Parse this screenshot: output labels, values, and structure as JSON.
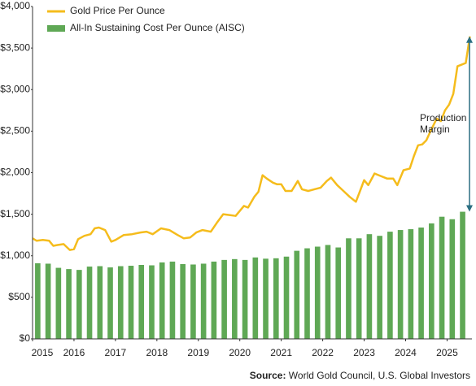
{
  "chart_data": {
    "type": "bar_line",
    "series": [
      {
        "name": "Gold Price Per Ounce",
        "kind": "line",
        "color": "#f5bc1c",
        "x": [
          2015.0,
          2015.1,
          2015.25,
          2015.4,
          2015.5,
          2015.6,
          2015.75,
          2015.9,
          2016.0,
          2016.1,
          2016.25,
          2016.4,
          2016.5,
          2016.6,
          2016.75,
          2016.9,
          2017.0,
          2017.2,
          2017.4,
          2017.6,
          2017.75,
          2017.9,
          2018.1,
          2018.3,
          2018.5,
          2018.65,
          2018.8,
          2018.95,
          2019.1,
          2019.3,
          2019.45,
          2019.6,
          2019.75,
          2019.9,
          2020.1,
          2020.2,
          2020.35,
          2020.45,
          2020.55,
          2020.65,
          2020.8,
          2020.9,
          2021.0,
          2021.1,
          2021.25,
          2021.4,
          2021.5,
          2021.65,
          2021.8,
          2021.95,
          2022.1,
          2022.2,
          2022.35,
          2022.5,
          2022.65,
          2022.8,
          2022.9,
          2023.0,
          2023.1,
          2023.25,
          2023.4,
          2023.55,
          2023.7,
          2023.8,
          2023.95,
          2024.1,
          2024.2,
          2024.3,
          2024.4,
          2024.5,
          2024.6,
          2024.75,
          2024.85,
          2024.95,
          2025.05,
          2025.15,
          2025.25,
          2025.35,
          2025.45,
          2025.55
        ],
        "values": [
          1210,
          1180,
          1190,
          1180,
          1120,
          1130,
          1140,
          1070,
          1080,
          1200,
          1240,
          1260,
          1330,
          1340,
          1310,
          1170,
          1190,
          1250,
          1260,
          1280,
          1290,
          1260,
          1330,
          1310,
          1250,
          1210,
          1220,
          1280,
          1310,
          1290,
          1400,
          1500,
          1490,
          1480,
          1600,
          1580,
          1710,
          1770,
          1970,
          1930,
          1880,
          1860,
          1860,
          1780,
          1780,
          1900,
          1800,
          1780,
          1800,
          1820,
          1900,
          1940,
          1850,
          1780,
          1710,
          1650,
          1780,
          1910,
          1850,
          1990,
          1960,
          1930,
          1930,
          1850,
          2030,
          2050,
          2200,
          2330,
          2340,
          2390,
          2500,
          2650,
          2620,
          2750,
          2820,
          2950,
          3280,
          3300,
          3320,
          3640
        ]
      },
      {
        "name": "All-In Sustaining Cost Per Ounce (AISC)",
        "kind": "bar",
        "color": "#5fa855",
        "x": [
          2015.125,
          2015.375,
          2015.625,
          2015.875,
          2016.125,
          2016.375,
          2016.625,
          2016.875,
          2017.125,
          2017.375,
          2017.625,
          2017.875,
          2018.125,
          2018.375,
          2018.625,
          2018.875,
          2019.125,
          2019.375,
          2019.625,
          2019.875,
          2020.125,
          2020.375,
          2020.625,
          2020.875,
          2021.125,
          2021.375,
          2021.625,
          2021.875,
          2022.125,
          2022.375,
          2022.625,
          2022.875,
          2023.125,
          2023.375,
          2023.625,
          2023.875,
          2024.125,
          2024.375,
          2024.625,
          2024.875,
          2025.125,
          2025.375
        ],
        "values": [
          910,
          905,
          855,
          840,
          830,
          870,
          875,
          860,
          875,
          880,
          890,
          885,
          920,
          930,
          900,
          895,
          905,
          930,
          950,
          960,
          950,
          980,
          965,
          970,
          990,
          1060,
          1090,
          1110,
          1130,
          1100,
          1210,
          1210,
          1260,
          1240,
          1290,
          1310,
          1320,
          1340,
          1390,
          1470,
          1440,
          1530
        ]
      }
    ],
    "xlim": [
      2015,
      2025.6
    ],
    "xticks": [
      2015,
      2016,
      2017,
      2018,
      2019,
      2020,
      2021,
      2022,
      2023,
      2024,
      2025
    ],
    "ylim": [
      0,
      4000
    ],
    "yticks": [
      {
        "value": 0,
        "label": "$0"
      },
      {
        "value": 500,
        "label": "$500"
      },
      {
        "value": 1000,
        "label": "$1,000"
      },
      {
        "value": 1500,
        "label": "$1,500"
      },
      {
        "value": 2000,
        "label": "$2,000"
      },
      {
        "value": 2500,
        "label": "$2,500"
      },
      {
        "value": 3000,
        "label": "$3,000"
      },
      {
        "value": 3500,
        "label": "$3,500"
      },
      {
        "value": 4000,
        "label": "$4,000"
      }
    ],
    "grid": false,
    "legend": "top-left",
    "annotation": [
      "Production",
      "Margin"
    ],
    "annotation_color": "#2b6f82",
    "source_label": "Source:",
    "source": "World Gold Council, U.S. Global Investors"
  }
}
